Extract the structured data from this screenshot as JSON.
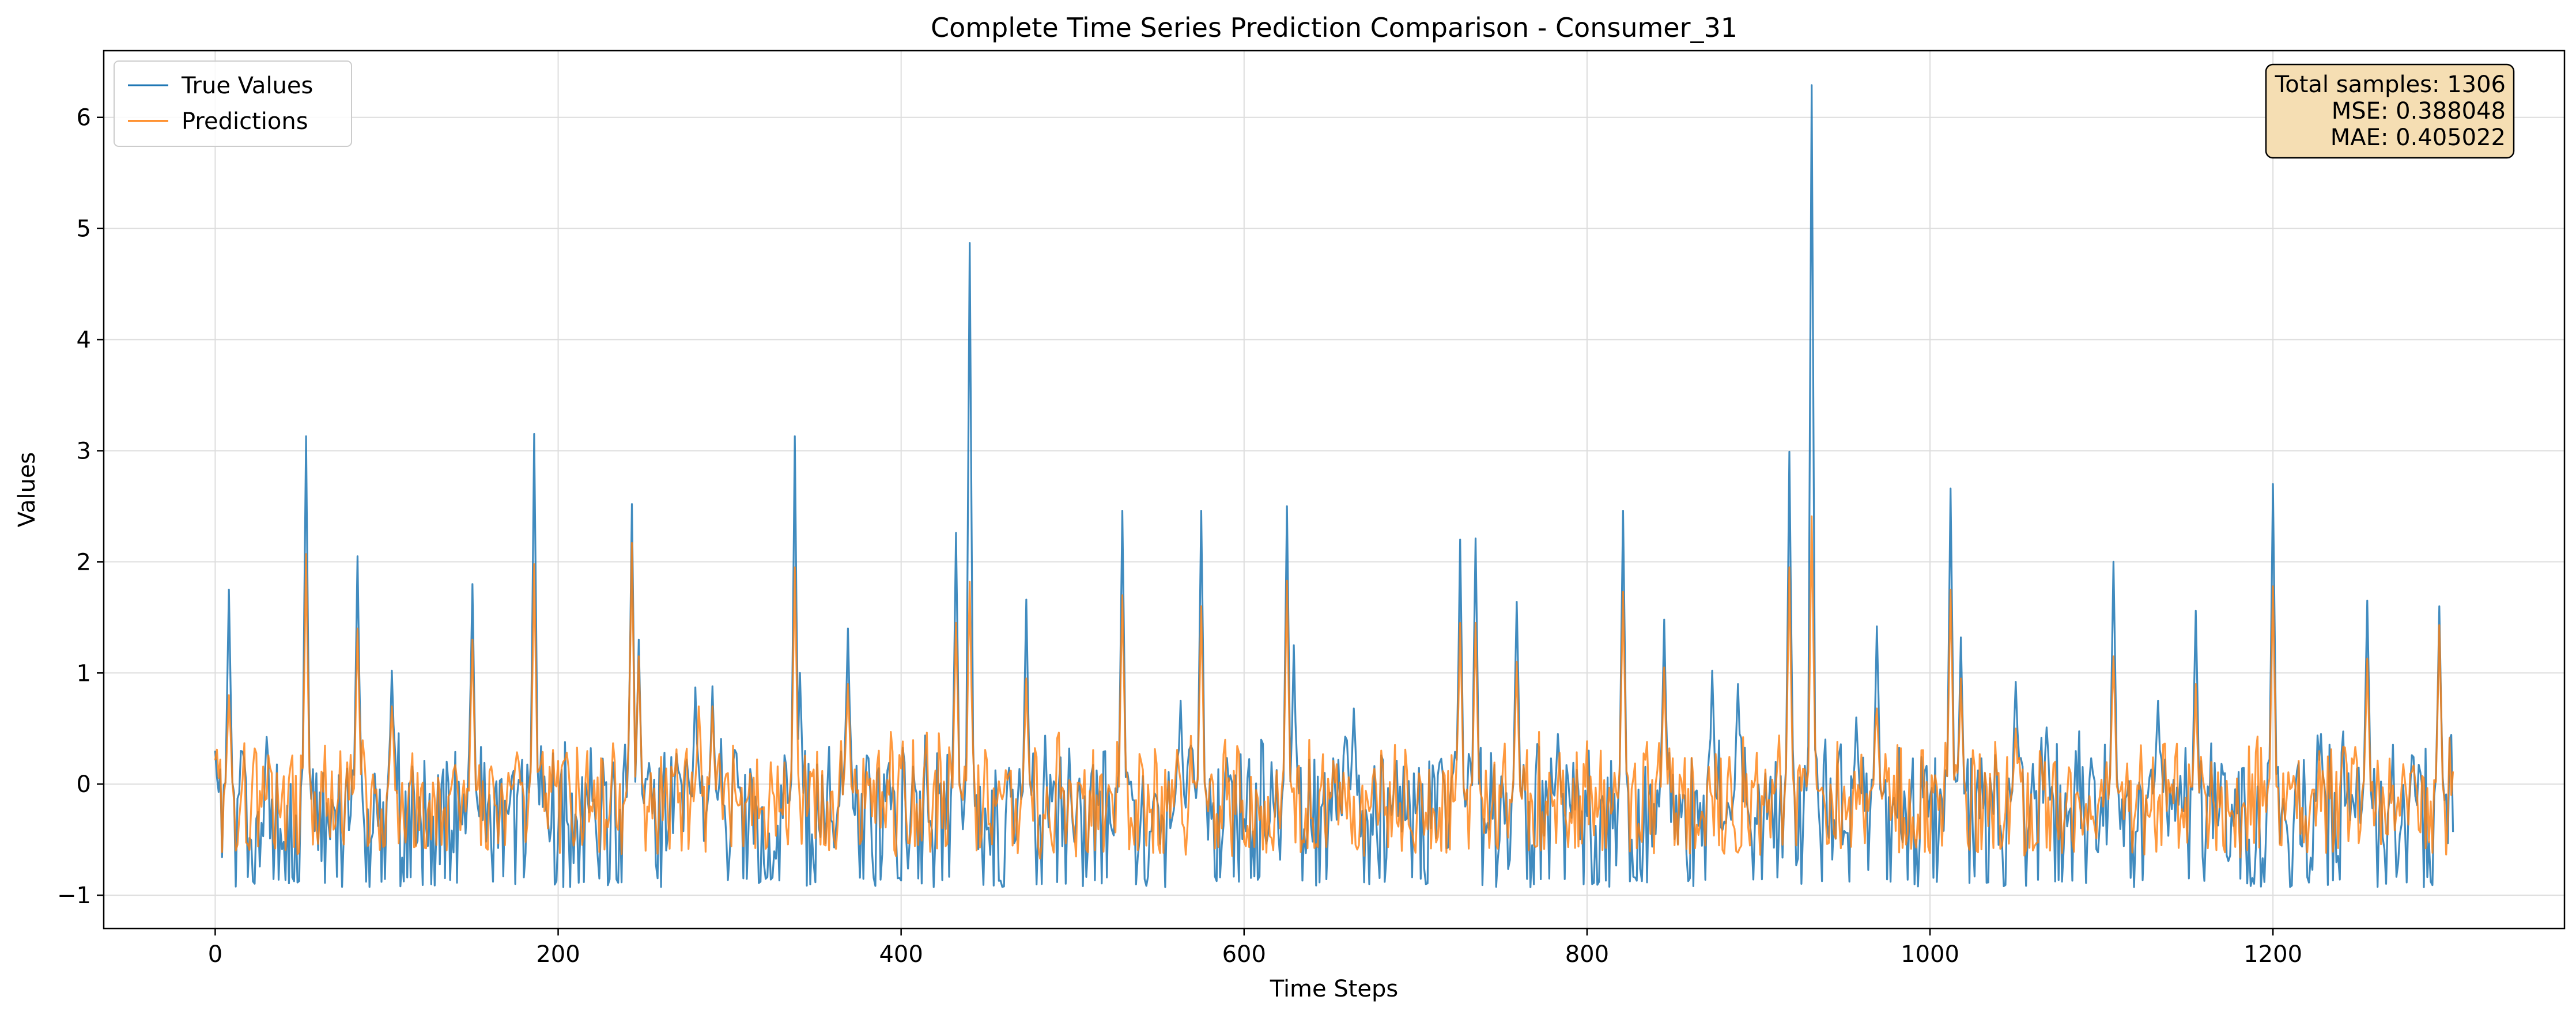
{
  "chart_data": {
    "type": "line",
    "title": "Complete Time Series Prediction Comparison - Consumer_31",
    "xlabel": "Time Steps",
    "ylabel": "Values",
    "xlim": [
      -65,
      1370
    ],
    "ylim": [
      -1.3,
      6.6
    ],
    "x_ticks": [
      0,
      200,
      400,
      600,
      800,
      1000,
      1200
    ],
    "y_ticks": [
      -1,
      0,
      1,
      2,
      3,
      4,
      5,
      6
    ],
    "x_tick_labels": [
      "0",
      "200",
      "400",
      "600",
      "800",
      "1000",
      "1200"
    ],
    "y_tick_labels": [
      "−1",
      "0",
      "1",
      "2",
      "3",
      "4",
      "5",
      "6"
    ],
    "grid": true,
    "legend_position": "upper-left",
    "total_samples": 1306,
    "series": [
      {
        "name": "True Values",
        "color": "#1f77b4",
        "baseline": -0.15,
        "noise_amp": 0.45,
        "trough": -0.93,
        "peaks": [
          [
            0,
            0.3
          ],
          [
            8,
            1.75
          ],
          [
            53,
            3.13
          ],
          [
            83,
            2.05
          ],
          [
            103,
            1.02
          ],
          [
            150,
            1.8
          ],
          [
            186,
            3.15
          ],
          [
            243,
            2.52
          ],
          [
            247,
            1.3
          ],
          [
            280,
            0.87
          ],
          [
            290,
            0.88
          ],
          [
            338,
            3.13
          ],
          [
            341,
            1.0
          ],
          [
            369,
            1.4
          ],
          [
            432,
            2.26
          ],
          [
            440,
            4.87
          ],
          [
            473,
            1.66
          ],
          [
            529,
            2.46
          ],
          [
            563,
            0.75
          ],
          [
            575,
            2.46
          ],
          [
            625,
            2.5
          ],
          [
            629,
            1.25
          ],
          [
            664,
            0.68
          ],
          [
            726,
            2.2
          ],
          [
            735,
            2.21
          ],
          [
            759,
            1.64
          ],
          [
            783,
            0.45
          ],
          [
            821,
            2.46
          ],
          [
            845,
            1.48
          ],
          [
            873,
            1.02
          ],
          [
            888,
            0.9
          ],
          [
            918,
            2.99
          ],
          [
            931,
            6.29
          ],
          [
            957,
            0.6
          ],
          [
            969,
            1.42
          ],
          [
            1012,
            2.66
          ],
          [
            1018,
            1.32
          ],
          [
            1050,
            0.92
          ],
          [
            1068,
            0.51
          ],
          [
            1107,
            2.0
          ],
          [
            1133,
            0.75
          ],
          [
            1155,
            1.56
          ],
          [
            1200,
            2.7
          ],
          [
            1228,
            0.45
          ],
          [
            1255,
            1.65
          ],
          [
            1297,
            1.6
          ]
        ]
      },
      {
        "name": "Predictions",
        "color": "#ff7f0e",
        "baseline": -0.1,
        "noise_amp": 0.4,
        "trough": -0.62,
        "peaks": [
          [
            8,
            0.8
          ],
          [
            53,
            2.07
          ],
          [
            83,
            1.4
          ],
          [
            103,
            0.7
          ],
          [
            150,
            1.3
          ],
          [
            186,
            1.98
          ],
          [
            243,
            2.17
          ],
          [
            247,
            1.15
          ],
          [
            282,
            0.7
          ],
          [
            290,
            0.7
          ],
          [
            338,
            1.95
          ],
          [
            369,
            0.9
          ],
          [
            432,
            1.45
          ],
          [
            440,
            1.82
          ],
          [
            473,
            0.95
          ],
          [
            529,
            1.7
          ],
          [
            575,
            1.6
          ],
          [
            625,
            1.83
          ],
          [
            726,
            1.45
          ],
          [
            735,
            1.45
          ],
          [
            759,
            1.1
          ],
          [
            821,
            1.73
          ],
          [
            845,
            1.05
          ],
          [
            918,
            1.95
          ],
          [
            931,
            2.41
          ],
          [
            969,
            0.68
          ],
          [
            1012,
            1.75
          ],
          [
            1018,
            0.95
          ],
          [
            1050,
            0.5
          ],
          [
            1107,
            1.15
          ],
          [
            1155,
            0.9
          ],
          [
            1200,
            1.78
          ],
          [
            1255,
            1.13
          ],
          [
            1297,
            1.43
          ]
        ]
      }
    ]
  },
  "stats_box": {
    "line1": "Total samples: 1306",
    "line2": "MSE: 0.388048",
    "line3": "MAE: 0.405022"
  }
}
